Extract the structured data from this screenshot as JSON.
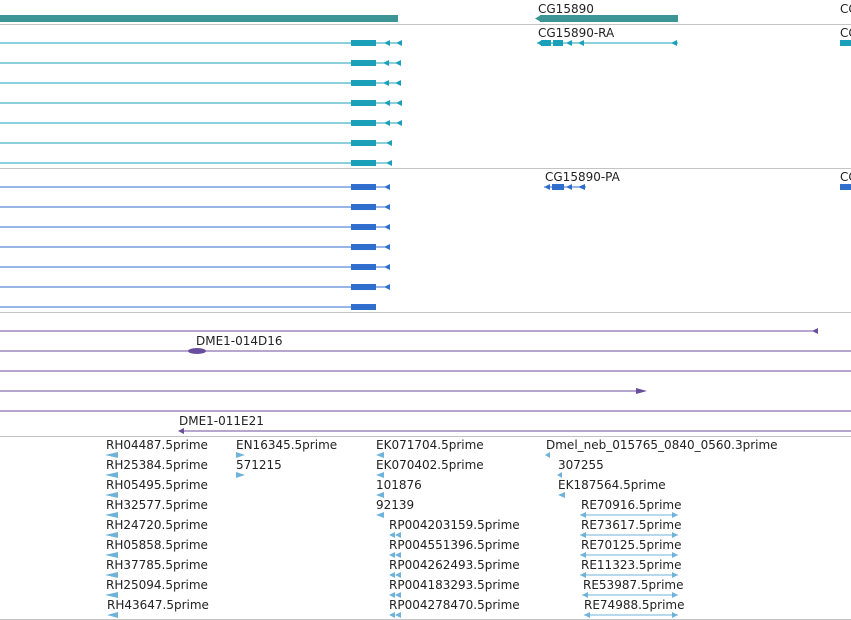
{
  "colors": {
    "gene": "#3d9494",
    "mrna": "#1aa0b8",
    "protein": "#2f6ecc",
    "clone": "#6a4e9e",
    "est": "#6fb3da",
    "separator": "#c4c4c4"
  },
  "genes": [
    {
      "label": "CG15890"
    },
    {
      "label": "CG"
    }
  ],
  "transcripts": [
    {
      "label": "CG15890-RA"
    },
    {
      "label": "CG"
    }
  ],
  "proteins": [
    {
      "label": "CG15890-PA"
    },
    {
      "label": "CG"
    }
  ],
  "clones": [
    {
      "label": "DME1-014D16"
    },
    {
      "label": "DME1-011E21"
    }
  ],
  "ests": {
    "col1": [
      "RH04487.5prime",
      "RH25384.5prime",
      "RH05495.5prime",
      "RH32577.5prime",
      "RH24720.5prime",
      "RH05858.5prime",
      "RH37785.5prime",
      "RH25094.5prime",
      "RH43647.5prime"
    ],
    "col2": [
      "EN16345.5prime",
      "571215"
    ],
    "col3": [
      "EK071704.5prime",
      "EK070402.5prime",
      "101876",
      "92139",
      "RP004203159.5prime",
      "RP004551396.5prime",
      "RP004262493.5prime",
      "RP004183293.5prime",
      "RP004278470.5prime"
    ],
    "col4": [
      "Dmel_neb_015765_0840_0560.3prime",
      "307255",
      "EK187564.5prime",
      "RE70916.5prime",
      "RE73617.5prime",
      "RE70125.5prime",
      "RE11323.5prime",
      "RE53987.5prime",
      "RE74988.5prime"
    ]
  }
}
